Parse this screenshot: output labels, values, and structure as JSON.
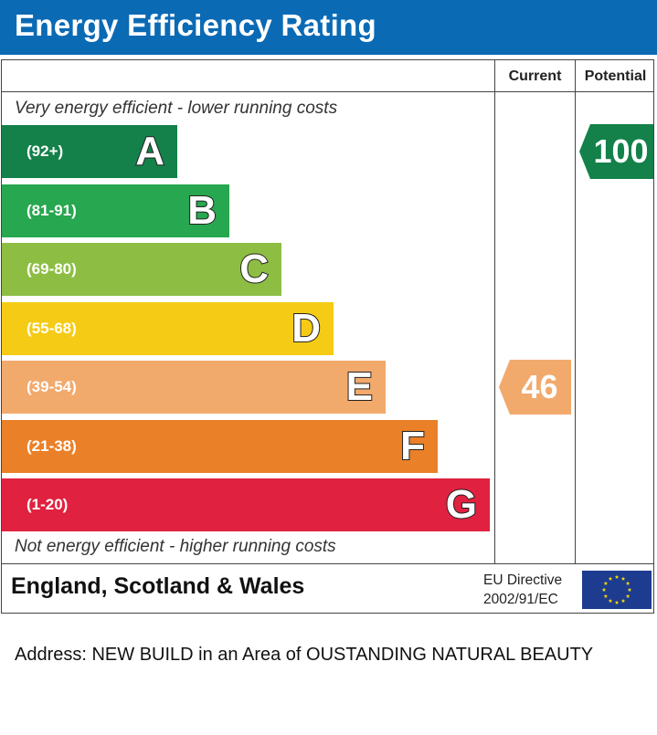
{
  "header": {
    "title": "Energy Efficiency Rating"
  },
  "columns": {
    "current": "Current",
    "potential": "Potential"
  },
  "captions": {
    "top": "Very energy efficient - lower running costs",
    "bottom": "Not energy efficient - higher running costs"
  },
  "chart_data": {
    "type": "bar",
    "title": "Energy Efficiency Rating",
    "categories": [
      "A",
      "B",
      "C",
      "D",
      "E",
      "F",
      "G"
    ],
    "ranges": [
      "(92+)",
      "(81-91)",
      "(69-80)",
      "(55-68)",
      "(39-54)",
      "(21-38)",
      "(1-20)"
    ],
    "colors": [
      "#138149",
      "#27a74f",
      "#8dbe43",
      "#f5cb15",
      "#f2a96c",
      "#ea8027",
      "#e0213f"
    ],
    "current": {
      "value": 46,
      "band": "E",
      "color": "#f2a96c"
    },
    "potential": {
      "value": 100,
      "band": "A",
      "color": "#138149"
    }
  },
  "footer": {
    "region": "England, Scotland & Wales",
    "directive_line1": "EU Directive",
    "directive_line2": "2002/91/EC"
  },
  "address": "Address: NEW BUILD in an Area of OUSTANDING NATURAL BEAUTY"
}
